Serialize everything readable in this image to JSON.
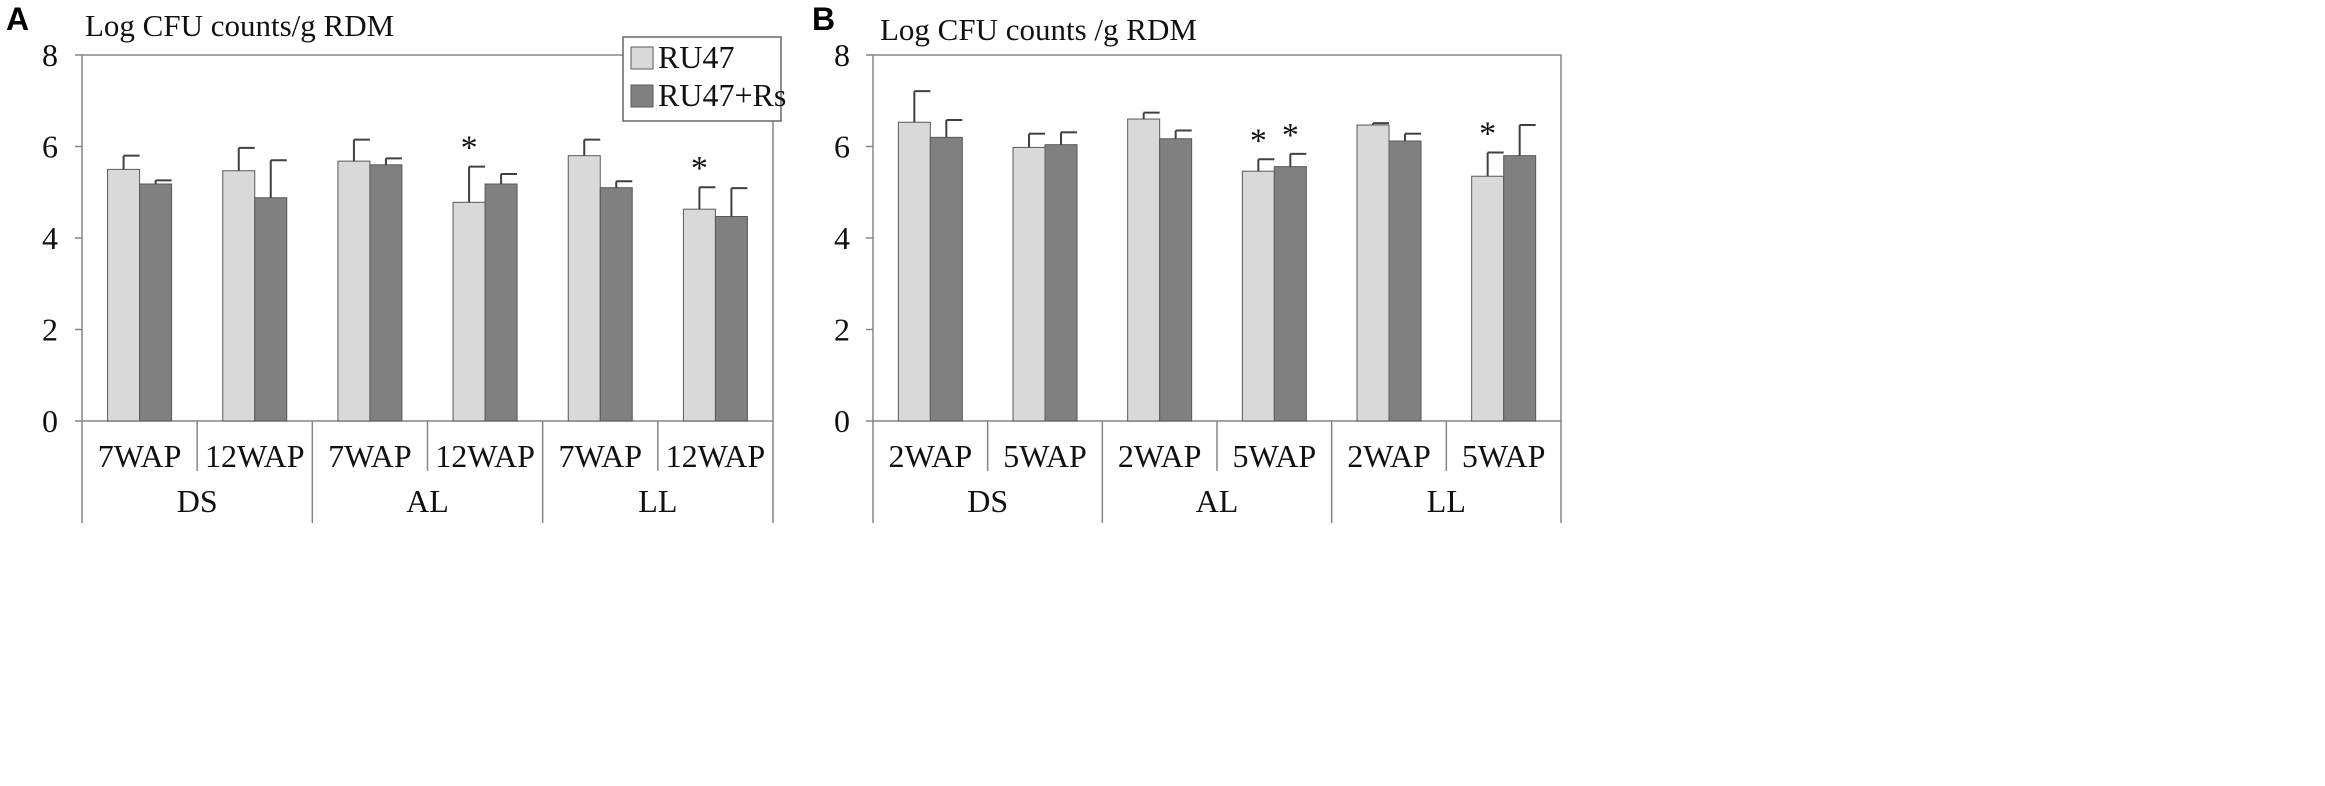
{
  "colors": {
    "light": "#d9d9d9",
    "dark": "#808080",
    "axis": "#868686",
    "errbar": "#404040"
  },
  "legend": [
    "RU47",
    "RU47+Rs"
  ],
  "chart_data": [
    {
      "panel": "A",
      "type": "bar",
      "title": "Log CFU counts/g RDM",
      "ylim": [
        0,
        8
      ],
      "yticks": [
        "0",
        "2",
        "4",
        "6",
        "8"
      ],
      "categories": [
        "7WAP",
        "12WAP",
        "7WAP",
        "12WAP",
        "7WAP",
        "12WAP"
      ],
      "groups": [
        "DS",
        "AL",
        "LL"
      ],
      "series": [
        {
          "name": "RU47",
          "values": [
            5.5,
            5.47,
            5.68,
            4.78,
            5.8,
            4.63
          ],
          "errors": [
            0.3,
            0.5,
            0.47,
            0.78,
            0.35,
            0.48
          ],
          "stars": [
            false,
            false,
            false,
            true,
            false,
            true
          ]
        },
        {
          "name": "RU47+Rs",
          "values": [
            5.18,
            4.88,
            5.6,
            5.18,
            5.1,
            4.47
          ],
          "errors": [
            0.08,
            0.82,
            0.14,
            0.22,
            0.14,
            0.62
          ],
          "stars": [
            false,
            false,
            false,
            false,
            false,
            false
          ]
        }
      ]
    },
    {
      "panel": "B",
      "type": "bar",
      "title": "Log CFU counts /g RDM",
      "ylim": [
        0,
        8
      ],
      "yticks": [
        "0",
        "2",
        "4",
        "6",
        "8"
      ],
      "categories": [
        "2WAP",
        "5WAP",
        "2WAP",
        "5WAP",
        "2WAP",
        "5WAP"
      ],
      "groups": [
        "DS",
        "AL",
        "LL"
      ],
      "series": [
        {
          "name": "RU47",
          "values": [
            6.53,
            5.98,
            6.6,
            5.46,
            6.47,
            5.35
          ],
          "errors": [
            0.68,
            0.3,
            0.14,
            0.26,
            0.04,
            0.52
          ],
          "stars": [
            false,
            false,
            false,
            true,
            false,
            true
          ]
        },
        {
          "name": "RU47+Rs",
          "values": [
            6.2,
            6.04,
            6.17,
            5.56,
            6.12,
            5.8
          ],
          "errors": [
            0.38,
            0.27,
            0.18,
            0.28,
            0.16,
            0.67
          ],
          "stars": [
            false,
            false,
            false,
            true,
            false,
            false
          ]
        }
      ]
    }
  ]
}
